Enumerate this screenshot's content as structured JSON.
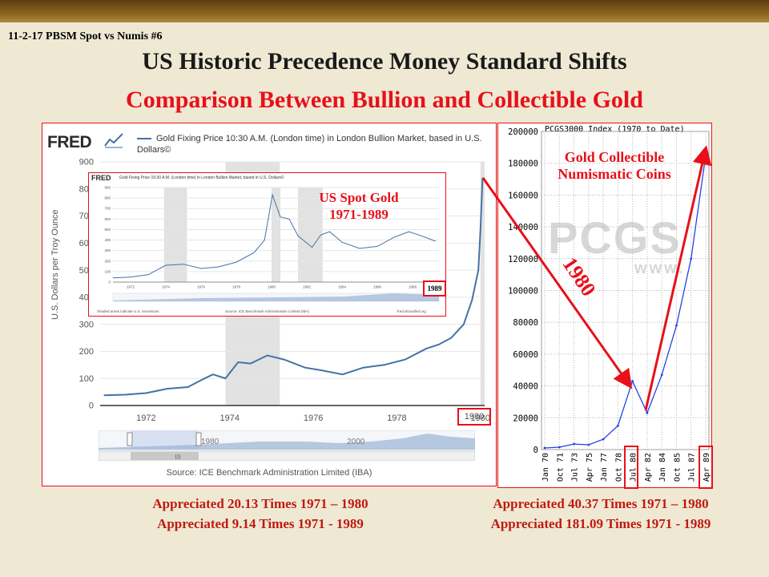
{
  "slide": {
    "id": "11-2-17 PBSM Spot vs Numis #6",
    "title": "US Historic Precedence Money Standard Shifts",
    "subtitle": "Comparison Between Bullion and Collectible Gold"
  },
  "colors": {
    "accent": "#e8101a",
    "series": "#4572a7",
    "pcgs_line": "#2244dd",
    "recession": "#e2e2e2"
  },
  "fred": {
    "logo": "FRED",
    "logo_icon": "line-chart-icon",
    "series_title": "Gold Fixing Price 10:30 A.M. (London time) in London Bullion Market, based in U.S. Dollars©",
    "source": "Source: ICE Benchmark Administration Limited (IBA)",
    "navigator_labels": [
      "1980",
      "2000"
    ],
    "scroll_icon": "grip-icon"
  },
  "inset": {
    "logo": "FRED",
    "series_title": "Gold Fixing Price 10:30 A.M. (London time) in London Bullion Market, based in U.S. Dollars©",
    "footer_left": "Shaded areas indicate U.S. recessions",
    "footer_mid": "Source: ICE Benchmark Administration Limited (IBA)",
    "footer_right": "fred.stlouisfed.org"
  },
  "annotations": {
    "spot_label_1": "US Spot Gold",
    "spot_label_2": "1971-1989",
    "highlight_1989": "1989",
    "highlight_1980": "1980",
    "coins_label_1": "Gold Collectible",
    "coins_label_2": "Numismatic Coins",
    "arrow_1980": "1980"
  },
  "pcgs": {
    "chart_title": "PCGS3000 Index (1970 to Date)",
    "watermark": "PCGS",
    "watermark_small": "www."
  },
  "captions": {
    "left_1": "Appreciated 20.13 Times 1971 – 1980",
    "left_2": "Appreciated 9.14 Times 1971 - 1989",
    "right_1": "Appreciated 40.37 Times 1971 – 1980",
    "right_2": "Appreciated 181.09 Times 1971 - 1989"
  },
  "chart_data": [
    {
      "type": "line",
      "name": "fred-main",
      "title": "Gold Fixing Price 10:30 A.M. (London time) in London Bullion Market, based in U.S. Dollars©",
      "ylabel": "U.S. Dollars per Troy Ounce",
      "xlim": [
        1970.9,
        1980.1
      ],
      "ylim": [
        0,
        900
      ],
      "y_ticks": [
        0,
        100,
        200,
        300,
        400,
        500,
        600,
        700,
        800,
        900
      ],
      "x_ticks": [
        1972,
        1974,
        1976,
        1978,
        1980
      ],
      "recessions": [
        [
          1973.9,
          1975.2
        ],
        [
          1980.0,
          1980.5
        ]
      ],
      "x": [
        1971.0,
        1971.5,
        1972.0,
        1972.5,
        1973.0,
        1973.4,
        1973.6,
        1973.9,
        1974.2,
        1974.5,
        1974.9,
        1975.3,
        1975.8,
        1976.2,
        1976.7,
        1977.2,
        1977.7,
        1978.2,
        1978.7,
        1979.0,
        1979.3,
        1979.6,
        1979.8,
        1979.95,
        1980.0,
        1980.05
      ],
      "values": [
        38,
        40,
        46,
        62,
        68,
        100,
        115,
        100,
        160,
        155,
        185,
        170,
        140,
        130,
        115,
        140,
        150,
        170,
        210,
        225,
        250,
        300,
        390,
        500,
        650,
        840
      ]
    },
    {
      "type": "line",
      "name": "fred-inset",
      "title": "Gold Fixing Price 10:30 A.M. (London time) in London Bullion Market, based in U.S. Dollars©",
      "ylabel": "U.S. Dollars per Troy Ounce",
      "xlim": [
        1971,
        1989.5
      ],
      "ylim": [
        0,
        900
      ],
      "y_ticks": [
        0,
        100,
        200,
        300,
        400,
        500,
        600,
        700,
        800,
        900
      ],
      "x_ticks": [
        1972,
        1974,
        1976,
        1978,
        1980,
        1982,
        1984,
        1986,
        1988
      ],
      "recessions": [
        [
          1973.9,
          1975.2
        ],
        [
          1980.0,
          1980.5
        ],
        [
          1981.5,
          1982.9
        ]
      ],
      "x": [
        1971,
        1972,
        1973,
        1974,
        1975,
        1976,
        1977,
        1978,
        1979,
        1979.6,
        1980.05,
        1980.5,
        1981,
        1981.5,
        1982.3,
        1982.8,
        1983.3,
        1984,
        1985,
        1986,
        1987,
        1987.8,
        1988.5,
        1989.3
      ],
      "values": [
        40,
        48,
        70,
        160,
        170,
        130,
        145,
        190,
        280,
        400,
        830,
        620,
        600,
        440,
        330,
        450,
        480,
        380,
        320,
        340,
        430,
        480,
        440,
        390
      ]
    },
    {
      "type": "line",
      "name": "pcgs3000",
      "title": "PCGS3000 Index (1970 to Date)",
      "ylim": [
        0,
        200000
      ],
      "y_ticks": [
        0,
        20000,
        40000,
        60000,
        80000,
        100000,
        120000,
        140000,
        160000,
        180000,
        200000
      ],
      "categories": [
        "Jan 70",
        "Oct 71",
        "Jul 73",
        "Apr 75",
        "Jan 77",
        "Oct 78",
        "Jul 80",
        "Apr 82",
        "Jan 84",
        "Oct 85",
        "Jul 87",
        "Apr 89"
      ],
      "values": [
        1000,
        1500,
        3500,
        3000,
        6500,
        15000,
        43000,
        23000,
        47000,
        78000,
        120000,
        185000
      ]
    }
  ]
}
